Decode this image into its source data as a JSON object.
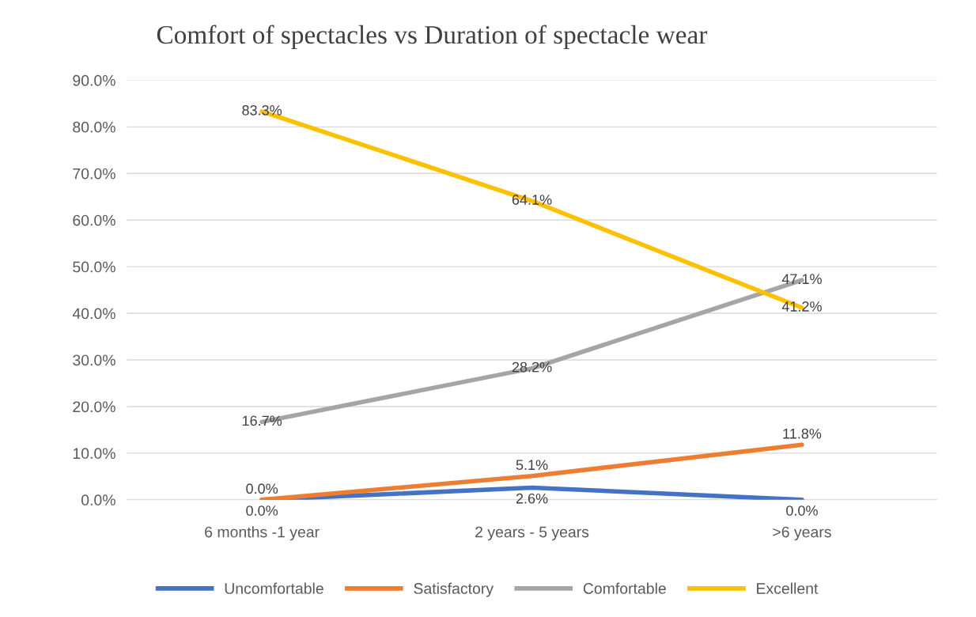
{
  "chart_data": {
    "type": "line",
    "title": "Comfort of spectacles vs Duration of spectacle wear",
    "categories": [
      "6 months -1 year",
      "2 years - 5 years",
      ">6 years"
    ],
    "series": [
      {
        "name": "Uncomfortable",
        "color": "#4472c4",
        "values": [
          0.0,
          2.6,
          0.0
        ],
        "value_labels": [
          "0.0%",
          "2.6%",
          "0.0%"
        ]
      },
      {
        "name": "Satisfactory",
        "color": "#ed7d31",
        "values": [
          0.0,
          5.1,
          11.8
        ],
        "value_labels": [
          "0.0%",
          "5.1%",
          "11.8%"
        ]
      },
      {
        "name": "Comfortable",
        "color": "#a5a5a5",
        "values": [
          16.7,
          28.2,
          47.1
        ],
        "value_labels": [
          "16.7%",
          "28.2%",
          "47.1%"
        ]
      },
      {
        "name": "Excellent",
        "color": "#ffc000",
        "values": [
          83.3,
          64.1,
          41.2
        ],
        "value_labels": [
          "83.3%",
          "64.1%",
          "41.2%"
        ]
      }
    ],
    "ylim": [
      0,
      90
    ],
    "yticks": [
      {
        "value": 0,
        "label": "0.0%"
      },
      {
        "value": 10,
        "label": "10.0%"
      },
      {
        "value": 20,
        "label": "20.0%"
      },
      {
        "value": 30,
        "label": "30.0%"
      },
      {
        "value": 40,
        "label": "40.0%"
      },
      {
        "value": 50,
        "label": "50.0%"
      },
      {
        "value": 60,
        "label": "60.0%"
      },
      {
        "value": 70,
        "label": "70.0%"
      },
      {
        "value": 80,
        "label": "80.0%"
      },
      {
        "value": 90,
        "label": "90.0%"
      }
    ],
    "grid": "y",
    "legend": "bottom",
    "marker": "none",
    "line_style": "solid"
  }
}
